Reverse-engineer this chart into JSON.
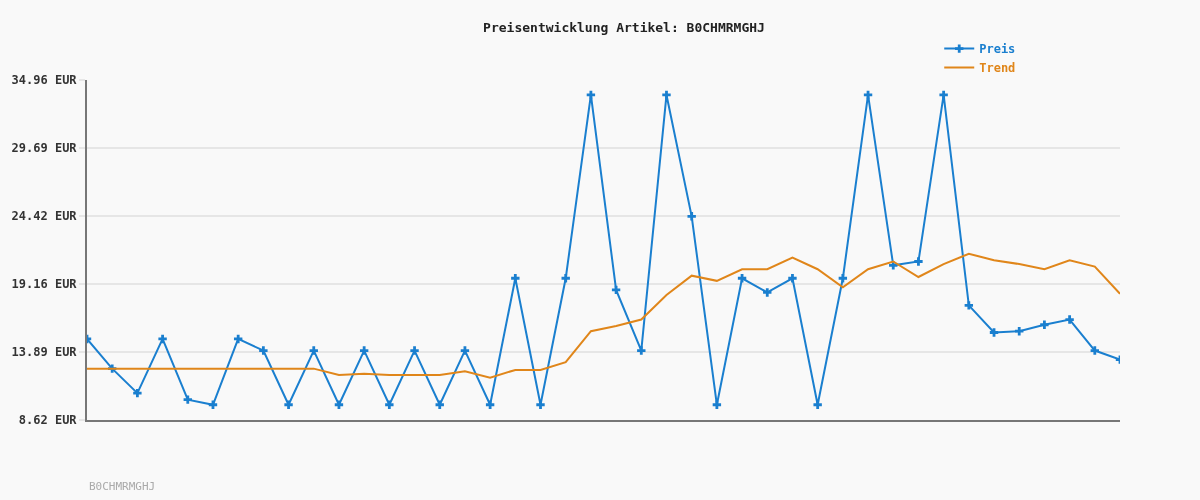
{
  "chart_data": {
    "type": "line",
    "title": "Preisentwicklung Artikel: B0CHMRMGHJ",
    "categories": [
      null,
      null,
      null,
      null,
      null,
      null,
      null,
      null,
      null,
      null,
      null,
      null,
      null,
      null,
      null,
      null,
      null,
      null,
      null,
      null,
      null,
      null,
      null,
      null,
      null,
      null,
      null,
      null,
      null,
      null,
      null,
      null,
      null,
      null,
      null,
      null,
      null,
      null,
      null,
      null,
      null,
      null
    ],
    "series": [
      {
        "name": "Preis",
        "color": "#1a7fcf",
        "marker": "cross",
        "values": [
          14.9,
          12.6,
          10.7,
          14.9,
          10.2,
          9.8,
          14.9,
          14.0,
          9.8,
          14.0,
          9.8,
          14.0,
          9.8,
          14.0,
          9.8,
          14.0,
          9.8,
          19.6,
          9.8,
          19.6,
          33.8,
          18.7,
          14.0,
          33.8,
          24.4,
          9.8,
          19.6,
          18.5,
          19.6,
          9.8,
          19.6,
          33.8,
          20.6,
          20.9,
          33.8,
          17.5,
          15.4,
          15.5,
          16.0,
          16.4,
          14.0,
          13.3
        ]
      },
      {
        "name": "Trend",
        "color": "#e0861a",
        "values": [
          12.6,
          12.6,
          12.6,
          12.6,
          12.6,
          12.6,
          12.6,
          12.6,
          12.6,
          12.6,
          12.1,
          12.2,
          12.1,
          12.1,
          12.1,
          12.4,
          11.9,
          12.5,
          12.5,
          13.1,
          15.5,
          15.9,
          16.4,
          18.3,
          19.8,
          19.4,
          20.3,
          20.3,
          21.2,
          20.3,
          18.9,
          20.3,
          20.9,
          19.7,
          20.7,
          21.5,
          21.0,
          20.7,
          20.3,
          21.0,
          20.5,
          18.4
        ]
      }
    ],
    "ylim": [
      8.62,
      34.96
    ],
    "yticks": [
      {
        "value": 8.62,
        "label": "8.62 EUR"
      },
      {
        "value": 13.89,
        "label": "13.89 EUR"
      },
      {
        "value": 19.16,
        "label": "19.16 EUR"
      },
      {
        "value": 24.42,
        "label": "24.42 EUR"
      },
      {
        "value": 29.69,
        "label": "29.69 EUR"
      },
      {
        "value": 34.96,
        "label": "34.96 EUR"
      }
    ],
    "tick_labels": "y",
    "grid": "y",
    "legend": "top right",
    "line_style": "solid",
    "annotations": [
      "B0CHMRMGHJ"
    ]
  }
}
